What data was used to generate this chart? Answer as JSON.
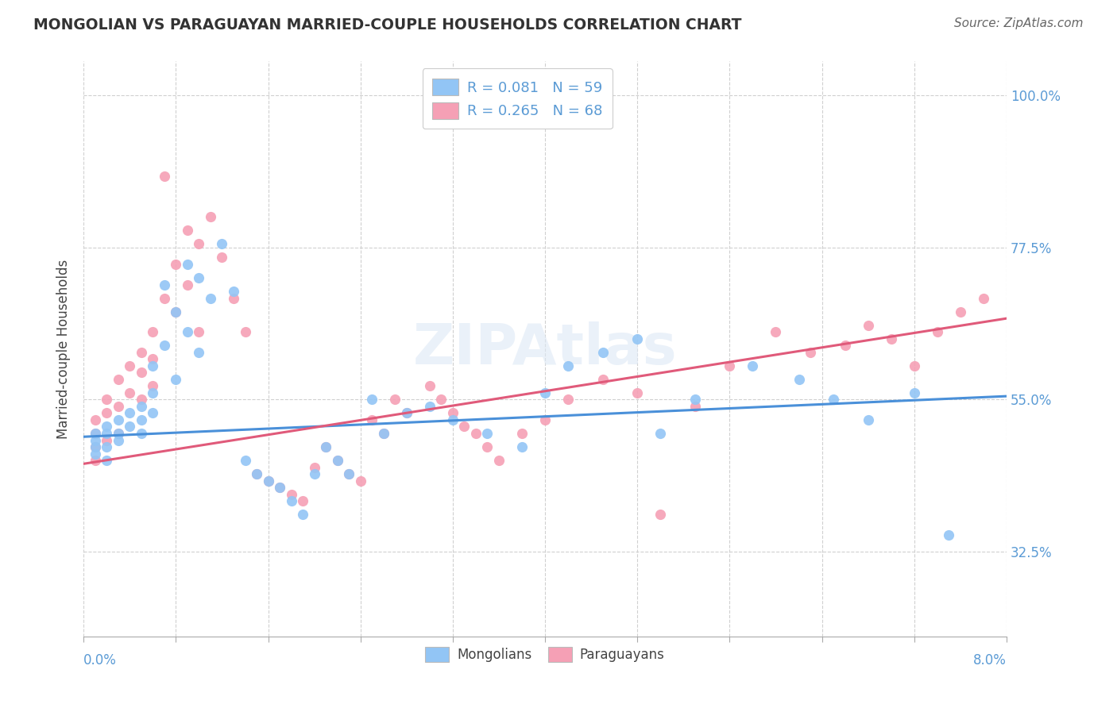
{
  "title": "MONGOLIAN VS PARAGUAYAN MARRIED-COUPLE HOUSEHOLDS CORRELATION CHART",
  "source": "Source: ZipAtlas.com",
  "ylabel": "Married-couple Households",
  "yticks": [
    "32.5%",
    "55.0%",
    "77.5%",
    "100.0%"
  ],
  "ytick_values": [
    0.325,
    0.55,
    0.775,
    1.0
  ],
  "xrange": [
    0.0,
    0.08
  ],
  "yrange": [
    0.2,
    1.05
  ],
  "legend_mongolians": "R = 0.081   N = 59",
  "legend_paraguayans": "R = 0.265   N = 68",
  "mongolian_color": "#92c5f5",
  "paraguayan_color": "#f5a0b5",
  "mongolian_line_color": "#4a90d9",
  "paraguayan_line_color": "#e05a7a",
  "mong_intercept": 0.49,
  "mong_slope": 0.75,
  "para_intercept": 0.46,
  "para_slope": 2.8,
  "mongolians_x": [
    0.001,
    0.001,
    0.001,
    0.001,
    0.002,
    0.002,
    0.002,
    0.002,
    0.003,
    0.003,
    0.003,
    0.004,
    0.004,
    0.005,
    0.005,
    0.005,
    0.006,
    0.006,
    0.006,
    0.007,
    0.007,
    0.008,
    0.008,
    0.009,
    0.009,
    0.01,
    0.01,
    0.011,
    0.012,
    0.013,
    0.014,
    0.015,
    0.016,
    0.017,
    0.018,
    0.019,
    0.02,
    0.021,
    0.022,
    0.023,
    0.025,
    0.026,
    0.028,
    0.03,
    0.032,
    0.035,
    0.038,
    0.04,
    0.042,
    0.045,
    0.048,
    0.05,
    0.053,
    0.058,
    0.062,
    0.065,
    0.068,
    0.072,
    0.075
  ],
  "mongolians_y": [
    0.5,
    0.49,
    0.48,
    0.47,
    0.51,
    0.5,
    0.48,
    0.46,
    0.52,
    0.5,
    0.49,
    0.53,
    0.51,
    0.54,
    0.52,
    0.5,
    0.6,
    0.56,
    0.53,
    0.72,
    0.63,
    0.68,
    0.58,
    0.75,
    0.65,
    0.73,
    0.62,
    0.7,
    0.78,
    0.71,
    0.46,
    0.44,
    0.43,
    0.42,
    0.4,
    0.38,
    0.44,
    0.48,
    0.46,
    0.44,
    0.55,
    0.5,
    0.53,
    0.54,
    0.52,
    0.5,
    0.48,
    0.56,
    0.6,
    0.62,
    0.64,
    0.5,
    0.55,
    0.6,
    0.58,
    0.55,
    0.52,
    0.56,
    0.35
  ],
  "paraguayans_x": [
    0.001,
    0.001,
    0.001,
    0.001,
    0.002,
    0.002,
    0.002,
    0.003,
    0.003,
    0.003,
    0.004,
    0.004,
    0.005,
    0.005,
    0.005,
    0.006,
    0.006,
    0.006,
    0.007,
    0.007,
    0.008,
    0.008,
    0.009,
    0.009,
    0.01,
    0.01,
    0.011,
    0.012,
    0.013,
    0.014,
    0.015,
    0.016,
    0.017,
    0.018,
    0.019,
    0.02,
    0.021,
    0.022,
    0.023,
    0.024,
    0.025,
    0.026,
    0.027,
    0.028,
    0.03,
    0.031,
    0.032,
    0.033,
    0.034,
    0.035,
    0.036,
    0.038,
    0.04,
    0.042,
    0.045,
    0.048,
    0.05,
    0.053,
    0.056,
    0.06,
    0.063,
    0.066,
    0.068,
    0.07,
    0.072,
    0.074,
    0.076,
    0.078
  ],
  "paraguayans_y": [
    0.52,
    0.5,
    0.48,
    0.46,
    0.55,
    0.53,
    0.49,
    0.58,
    0.54,
    0.5,
    0.6,
    0.56,
    0.62,
    0.59,
    0.55,
    0.65,
    0.61,
    0.57,
    0.88,
    0.7,
    0.75,
    0.68,
    0.8,
    0.72,
    0.78,
    0.65,
    0.82,
    0.76,
    0.7,
    0.65,
    0.44,
    0.43,
    0.42,
    0.41,
    0.4,
    0.45,
    0.48,
    0.46,
    0.44,
    0.43,
    0.52,
    0.5,
    0.55,
    0.53,
    0.57,
    0.55,
    0.53,
    0.51,
    0.5,
    0.48,
    0.46,
    0.5,
    0.52,
    0.55,
    0.58,
    0.56,
    0.38,
    0.54,
    0.6,
    0.65,
    0.62,
    0.63,
    0.66,
    0.64,
    0.6,
    0.65,
    0.68,
    0.7
  ]
}
